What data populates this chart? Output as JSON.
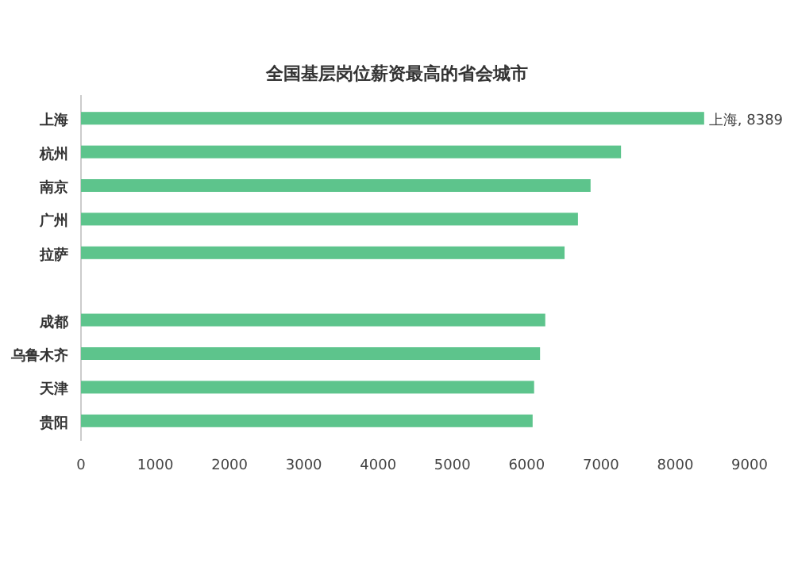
{
  "chart_data": {
    "type": "bar",
    "orientation": "horizontal",
    "title": "全国基层岗位薪资最高的省会城市",
    "categories": [
      "上海",
      "杭州",
      "南京",
      "广州",
      "拉萨",
      null,
      "成都",
      "乌鲁木齐",
      "天津",
      "贵阳"
    ],
    "values": [
      8389,
      7270,
      6860,
      6690,
      6510,
      null,
      6250,
      6180,
      6100,
      6080
    ],
    "value_labels": [
      "上海, 8389",
      null,
      null,
      null,
      null,
      null,
      null,
      null,
      null,
      null
    ],
    "color": "#5dc48c",
    "xlim": [
      0,
      9000
    ],
    "xticks": [
      0,
      1000,
      2000,
      3000,
      4000,
      5000,
      6000,
      7000,
      8000,
      9000
    ]
  }
}
